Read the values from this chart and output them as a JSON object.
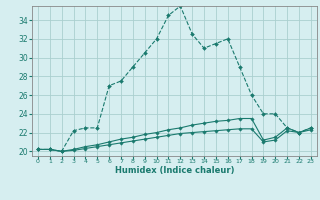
{
  "xlabel": "Humidex (Indice chaleur)",
  "xlim": [
    -0.5,
    23.5
  ],
  "ylim": [
    19.5,
    35.5
  ],
  "xticks": [
    0,
    1,
    2,
    3,
    4,
    5,
    6,
    7,
    8,
    9,
    10,
    11,
    12,
    13,
    14,
    15,
    16,
    17,
    18,
    19,
    20,
    21,
    22,
    23
  ],
  "yticks": [
    20,
    22,
    24,
    26,
    28,
    30,
    32,
    34
  ],
  "background_color": "#d6eef0",
  "grid_color": "#aacfcf",
  "line_color": "#1a7a6e",
  "series1_x": [
    0,
    1,
    2,
    3,
    4,
    5,
    6,
    7,
    8,
    9,
    10,
    11,
    12,
    13,
    14,
    15,
    16,
    17,
    18,
    19,
    20,
    21,
    22,
    23
  ],
  "series1_y": [
    20.2,
    20.2,
    20.0,
    22.2,
    22.5,
    22.5,
    27.0,
    27.5,
    29.0,
    30.5,
    32.0,
    34.5,
    35.5,
    32.5,
    31.0,
    31.5,
    32.0,
    29.0,
    26.0,
    24.0,
    24.0,
    22.5,
    22.0,
    22.5
  ],
  "series2_x": [
    0,
    1,
    2,
    3,
    4,
    5,
    6,
    7,
    8,
    9,
    10,
    11,
    12,
    13,
    14,
    15,
    16,
    17,
    18,
    19,
    20,
    21,
    22,
    23
  ],
  "series2_y": [
    20.2,
    20.2,
    20.0,
    20.2,
    20.5,
    20.7,
    21.0,
    21.3,
    21.5,
    21.8,
    22.0,
    22.3,
    22.5,
    22.8,
    23.0,
    23.2,
    23.3,
    23.5,
    23.5,
    21.2,
    21.5,
    22.5,
    22.0,
    22.5
  ],
  "series3_x": [
    0,
    1,
    2,
    3,
    4,
    5,
    6,
    7,
    8,
    9,
    10,
    11,
    12,
    13,
    14,
    15,
    16,
    17,
    18,
    19,
    20,
    21,
    22,
    23
  ],
  "series3_y": [
    20.2,
    20.2,
    20.0,
    20.1,
    20.3,
    20.5,
    20.7,
    20.9,
    21.1,
    21.3,
    21.5,
    21.7,
    21.9,
    22.0,
    22.1,
    22.2,
    22.3,
    22.4,
    22.4,
    21.0,
    21.2,
    22.2,
    22.0,
    22.3
  ]
}
